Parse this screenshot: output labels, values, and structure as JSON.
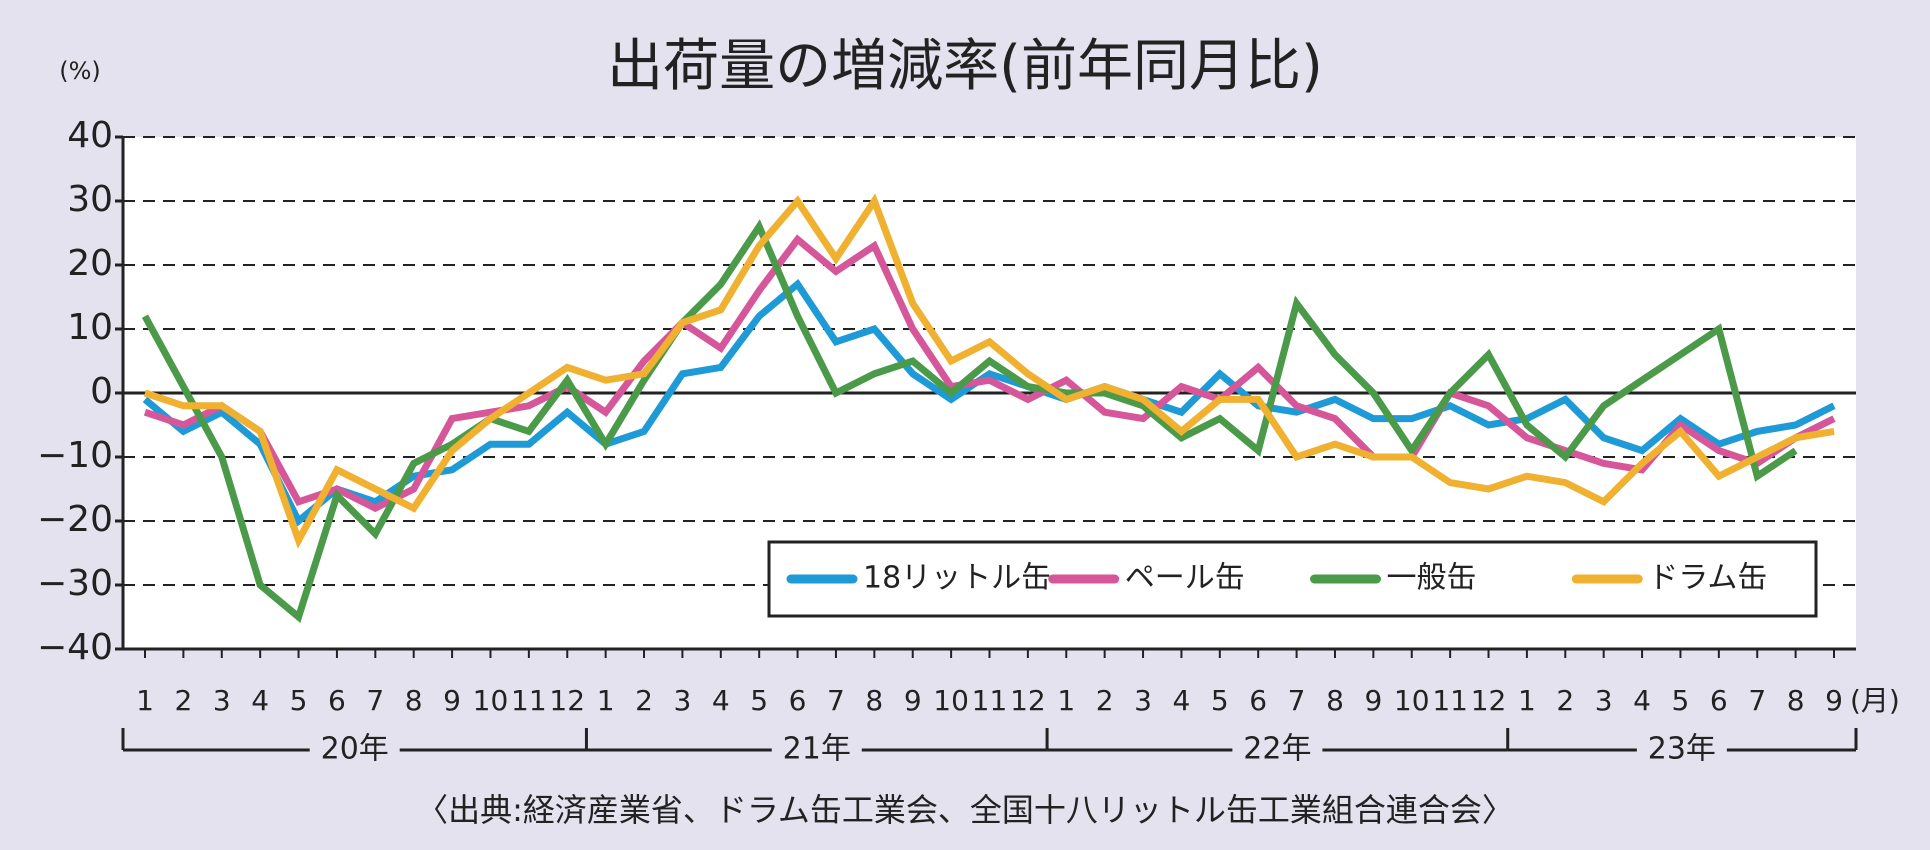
{
  "chart_data": {
    "type": "line",
    "title": "出荷量の増減率(前年同月比)",
    "y_unit": "(%)",
    "x_unit": "(月)",
    "source": "〈出典:経済産業省、ドラム缶工業会、全国十八リットル缶工業組合連合会〉",
    "categories": [
      "1",
      "2",
      "3",
      "4",
      "5",
      "6",
      "7",
      "8",
      "9",
      "10",
      "11",
      "12",
      "1",
      "2",
      "3",
      "4",
      "5",
      "6",
      "7",
      "8",
      "9",
      "10",
      "11",
      "12",
      "1",
      "2",
      "3",
      "4",
      "5",
      "6",
      "7",
      "8",
      "9",
      "10",
      "11",
      "12",
      "1",
      "2",
      "3",
      "4",
      "5",
      "6",
      "7",
      "8",
      "9"
    ],
    "groups": [
      {
        "label": "20年",
        "count": 12
      },
      {
        "label": "21年",
        "count": 12
      },
      {
        "label": "22年",
        "count": 12
      },
      {
        "label": "23年",
        "count": 9
      }
    ],
    "series": [
      {
        "name": "18リットル缶",
        "color": "#1e9ad6",
        "values": [
          -1,
          -6,
          -3,
          -8,
          -20,
          -15,
          -17,
          -13,
          -12,
          -8,
          -8,
          -3,
          -8,
          -6,
          3,
          4,
          12,
          17,
          8,
          10,
          3,
          -1,
          3,
          1,
          -1,
          1,
          -1,
          -3,
          3,
          -2,
          -3,
          -1,
          -4,
          -4,
          -2,
          -5,
          -4,
          -1,
          -7,
          -9,
          -4,
          -8,
          -6,
          -5,
          -2
        ]
      },
      {
        "name": "ペール缶",
        "color": "#d6569a",
        "values": [
          -3,
          -5,
          -2,
          -6,
          -17,
          -15,
          -18,
          -15,
          -4,
          -3,
          -2,
          1,
          -3,
          5,
          11,
          7,
          16,
          24,
          19,
          23,
          10,
          1,
          2,
          -1,
          2,
          -3,
          -4,
          1,
          -1,
          4,
          -2,
          -4,
          -10,
          -10,
          0,
          -2,
          -7,
          -9,
          -11,
          -12,
          -5,
          -9,
          -11,
          -7,
          -4
        ]
      },
      {
        "name": "一般缶",
        "color": "#4a9a4a",
        "values": [
          12,
          1,
          -10,
          -30,
          -35,
          -16,
          -22,
          -11,
          -8,
          -4,
          -6,
          2,
          -8,
          2,
          11,
          17,
          26,
          12,
          0,
          3,
          5,
          0,
          5,
          1,
          0,
          0,
          -2,
          -7,
          -4,
          -9,
          14,
          6,
          0,
          -9,
          0,
          6,
          -5,
          -10,
          -2,
          2,
          6,
          10,
          -13,
          -9,
          null
        ]
      },
      {
        "name": "ドラム缶",
        "color": "#f0b030",
        "values": [
          0,
          -2,
          -2,
          -6,
          -23,
          -12,
          -15,
          -18,
          -9,
          -4,
          0,
          4,
          2,
          3,
          11,
          13,
          23,
          30,
          21,
          30,
          14,
          5,
          8,
          3,
          -1,
          1,
          -1,
          -6,
          -1,
          -1,
          -10,
          -8,
          -10,
          -10,
          -14,
          -15,
          -13,
          -14,
          -17,
          -11,
          -6,
          -13,
          -10,
          -7,
          -6
        ]
      }
    ],
    "ylim": [
      -40,
      40
    ],
    "yticks": [
      {
        "value": -40,
        "label": "−40"
      },
      {
        "value": -30,
        "label": "−30"
      },
      {
        "value": -20,
        "label": "−20"
      },
      {
        "value": -10,
        "label": "−10"
      },
      0,
      10,
      20,
      30,
      40
    ],
    "grid": true,
    "legend": "lower right"
  }
}
